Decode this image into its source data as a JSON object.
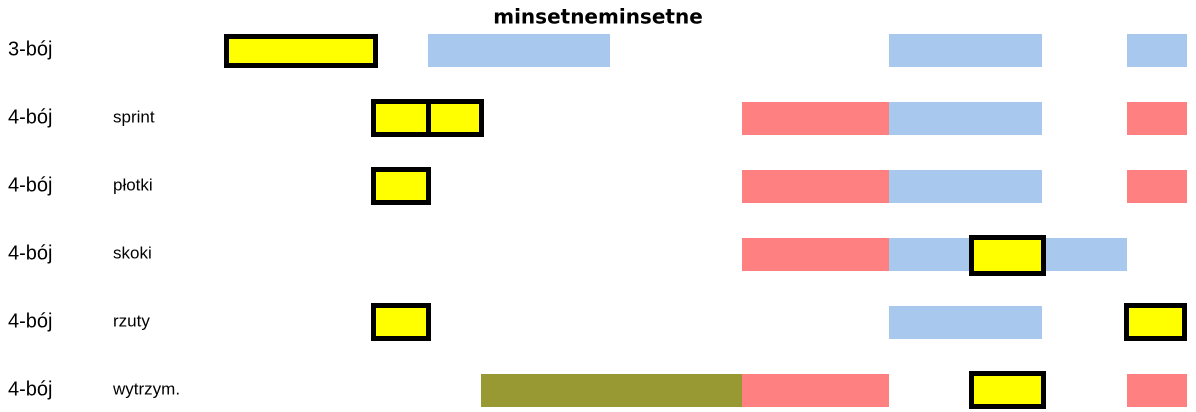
{
  "title": "minsetneminsetne",
  "rows": [
    {
      "label": "3-bój"
    },
    {
      "label": "4-bój",
      "sublabel": "sprint"
    },
    {
      "label": "4-bój",
      "sublabel": "płotki"
    },
    {
      "label": "4-bój",
      "sublabel": "skoki"
    },
    {
      "label": "4-bój",
      "sublabel": "rzuty"
    },
    {
      "label": "4-bój",
      "sublabel": "wytrzym."
    }
  ]
}
